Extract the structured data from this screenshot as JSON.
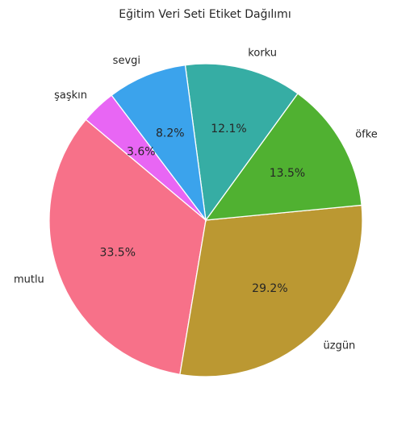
{
  "chart_data": {
    "type": "pie",
    "title": "Eğitim Veri Seti Etiket Dağılımı",
    "slices": [
      {
        "label": "mutlu",
        "value": 33.5,
        "pct_label": "33.5%",
        "color": "#f77189"
      },
      {
        "label": "üzgün",
        "value": 29.2,
        "pct_label": "29.2%",
        "color": "#bb9832"
      },
      {
        "label": "öfke",
        "value": 13.5,
        "pct_label": "13.5%",
        "color": "#50b131"
      },
      {
        "label": "korku",
        "value": 12.1,
        "pct_label": "12.1%",
        "color": "#36ada4"
      },
      {
        "label": "sevgi",
        "value": 8.2,
        "pct_label": "8.2%",
        "color": "#3ba3ec"
      },
      {
        "label": "şaşkın",
        "value": 3.6,
        "pct_label": "3.6%",
        "color": "#e866f4"
      }
    ],
    "start_angle_deg": 140,
    "direction": "counterclockwise",
    "legend": "none"
  }
}
